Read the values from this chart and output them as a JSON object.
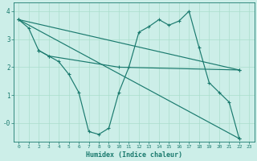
{
  "xlabel": "Humidex (Indice chaleur)",
  "background_color": "#cceee8",
  "grid_color": "#aaddcc",
  "line_color": "#1a7a6e",
  "xlim": [
    -0.5,
    23.5
  ],
  "ylim": [
    -0.65,
    4.3
  ],
  "yticks": [
    0,
    1,
    2,
    3,
    4
  ],
  "ytick_labels": [
    "-0",
    "1",
    "2",
    "3",
    "4"
  ],
  "xticks": [
    0,
    1,
    2,
    3,
    4,
    5,
    6,
    7,
    8,
    9,
    10,
    11,
    12,
    13,
    14,
    15,
    16,
    17,
    18,
    19,
    20,
    21,
    22,
    23
  ],
  "line1_x": [
    0,
    1,
    2,
    3,
    4,
    5,
    6,
    7,
    8,
    9,
    10,
    11,
    12,
    13,
    14,
    15,
    16,
    17,
    18,
    19,
    20,
    21,
    22
  ],
  "line1_y": [
    3.7,
    3.4,
    2.6,
    2.4,
    2.2,
    1.75,
    1.1,
    -0.3,
    -0.4,
    -0.18,
    1.1,
    2.0,
    3.25,
    3.45,
    3.7,
    3.5,
    3.65,
    4.0,
    2.7,
    1.45,
    1.1,
    0.75,
    -0.55
  ],
  "line2_x": [
    2,
    3,
    10,
    22
  ],
  "line2_y": [
    2.6,
    2.4,
    2.0,
    1.9
  ],
  "line3_x": [
    0,
    22
  ],
  "line3_y": [
    3.7,
    1.9
  ],
  "line4_x": [
    0,
    22
  ],
  "line4_y": [
    3.7,
    -0.55
  ]
}
